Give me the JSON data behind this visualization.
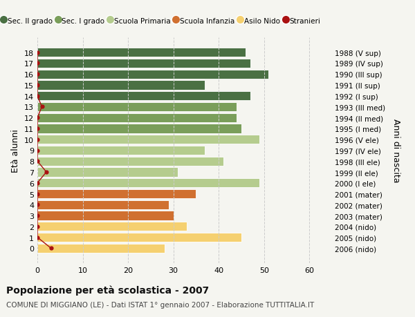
{
  "ages": [
    18,
    17,
    16,
    15,
    14,
    13,
    12,
    11,
    10,
    9,
    8,
    7,
    6,
    5,
    4,
    3,
    2,
    1,
    0
  ],
  "values": [
    46,
    47,
    51,
    37,
    47,
    44,
    44,
    45,
    49,
    37,
    41,
    31,
    49,
    35,
    29,
    30,
    33,
    45,
    28
  ],
  "bar_colors": [
    "#4a7043",
    "#4a7043",
    "#4a7043",
    "#4a7043",
    "#4a7043",
    "#7a9e5a",
    "#7a9e5a",
    "#7a9e5a",
    "#b5cc8e",
    "#b5cc8e",
    "#b5cc8e",
    "#b5cc8e",
    "#b5cc8e",
    "#d07030",
    "#d07030",
    "#d07030",
    "#f5d070",
    "#f5d070",
    "#f5d070"
  ],
  "right_labels": [
    "1988 (V sup)",
    "1989 (IV sup)",
    "1990 (III sup)",
    "1991 (II sup)",
    "1992 (I sup)",
    "1993 (III med)",
    "1994 (II med)",
    "1995 (I med)",
    "1996 (V ele)",
    "1997 (IV ele)",
    "1998 (III ele)",
    "1999 (II ele)",
    "2000 (I ele)",
    "2001 (mater)",
    "2002 (mater)",
    "2003 (mater)",
    "2004 (nido)",
    "2005 (nido)",
    "2006 (nido)"
  ],
  "legend_labels": [
    "Sec. II grado",
    "Sec. I grado",
    "Scuola Primaria",
    "Scuola Infanzia",
    "Asilo Nido",
    "Stranieri"
  ],
  "legend_colors": [
    "#4a7043",
    "#7a9e5a",
    "#b5cc8e",
    "#d07030",
    "#f5d070",
    "#aa1111"
  ],
  "ylabel_left": "Età alunni",
  "ylabel_right": "Anni di nascita",
  "title": "Popolazione per età scolastica - 2007",
  "subtitle": "COMUNE DI MIGGIANO (LE) - Dati ISTAT 1° gennaio 2007 - Elaborazione TUTTITALIA.IT",
  "xlim": [
    0,
    65
  ],
  "xticks": [
    0,
    10,
    20,
    30,
    40,
    50,
    60
  ],
  "background_color": "#f5f5f0",
  "grid_color": "#cccccc",
  "stranieri_color": "#aa1111",
  "stranieri_x_values": [
    0,
    0,
    0,
    0,
    0,
    1,
    0,
    0,
    0,
    0,
    0,
    2,
    0,
    0,
    0,
    0,
    0,
    0,
    3
  ]
}
